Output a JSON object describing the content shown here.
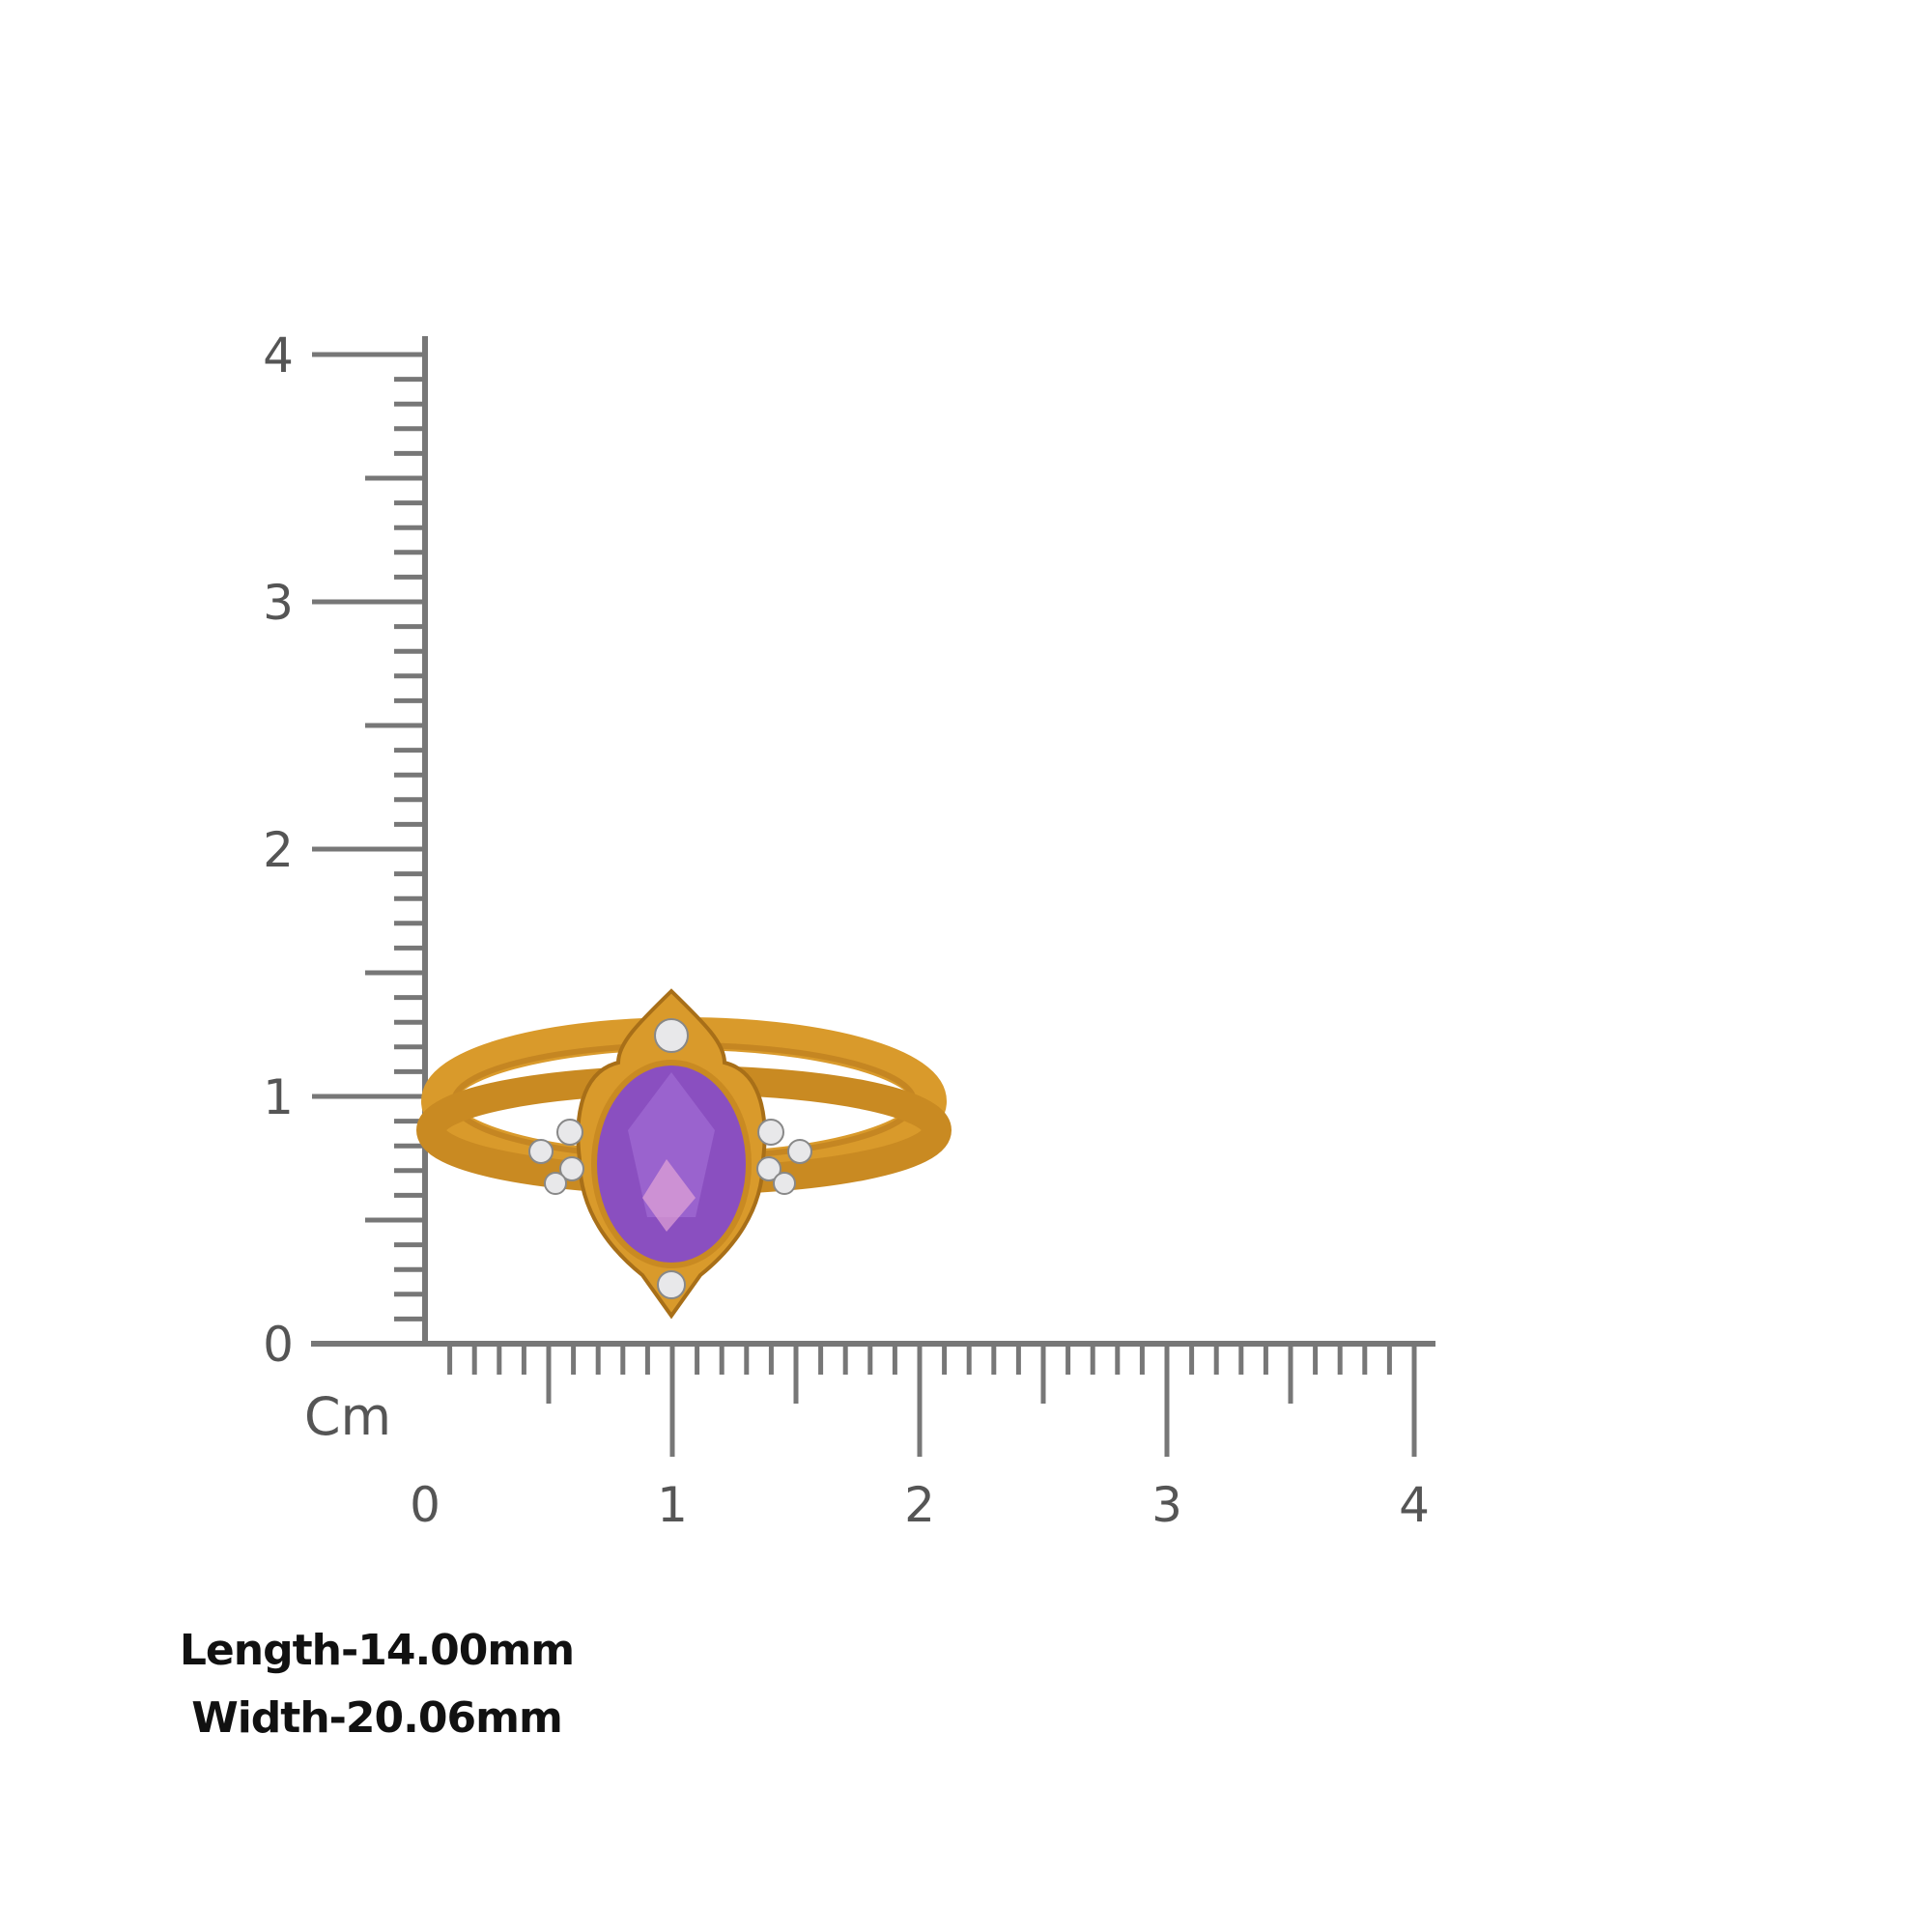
{
  "ruler": {
    "unit_label": "Cm",
    "y_tick_labels": [
      "0",
      "1",
      "2",
      "3",
      "4"
    ],
    "x_tick_labels": [
      "0",
      "1",
      "2",
      "3",
      "4"
    ],
    "color": "#777777"
  },
  "product": {
    "type": "ring",
    "stone_color": "#8a4fc0",
    "metal_color": "#d99a2b"
  },
  "dimensions": {
    "length": "Length-14.00mm",
    "width": "Width-20.06mm"
  }
}
